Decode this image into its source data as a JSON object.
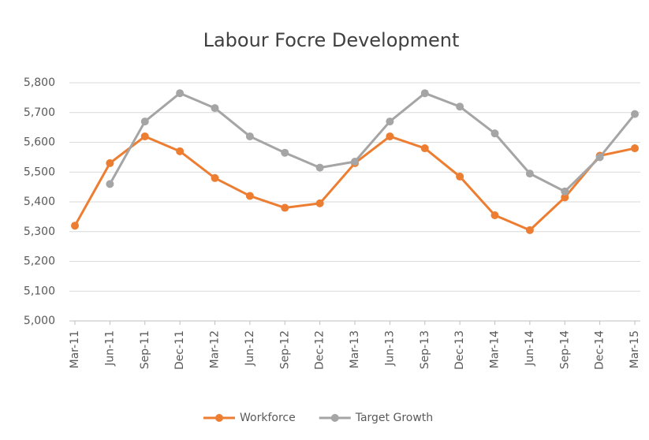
{
  "chart_data": {
    "type": "line",
    "title": "Labour Focre Development",
    "categories": [
      "Mar-11",
      "Jun-11",
      "Sep-11",
      "Dec-11",
      "Mar-12",
      "Jun-12",
      "Sep-12",
      "Dec-12",
      "Mar-13",
      "Jun-13",
      "Sep-13",
      "Dec-13",
      "Mar-14",
      "Jun-14",
      "Sep-14",
      "Dec-14",
      "Mar-15"
    ],
    "series": [
      {
        "name": "Workforce",
        "color": "#ed7d31",
        "values": [
          5320,
          5530,
          5620,
          5570,
          5480,
          5420,
          5380,
          5395,
          5530,
          5620,
          5580,
          5485,
          5355,
          5305,
          5415,
          5555,
          5580
        ]
      },
      {
        "name": "Target Growth",
        "color": "#a5a5a5",
        "values": [
          null,
          5460,
          5670,
          5765,
          5715,
          5620,
          5565,
          5515,
          5535,
          5670,
          5765,
          5720,
          5630,
          5495,
          5435,
          5550,
          5695
        ]
      }
    ],
    "ylim": [
      5000,
      5800
    ],
    "yticks": [
      {
        "value": 5000,
        "label": "5,000"
      },
      {
        "value": 5100,
        "label": "5,100"
      },
      {
        "value": 5200,
        "label": "5,200"
      },
      {
        "value": 5300,
        "label": "5,300"
      },
      {
        "value": 5400,
        "label": "5,400"
      },
      {
        "value": 5500,
        "label": "5,500"
      },
      {
        "value": 5600,
        "label": "5,600"
      },
      {
        "value": 5700,
        "label": "5,700"
      },
      {
        "value": 5800,
        "label": "5,800"
      }
    ],
    "grid": true,
    "legend": "bottom"
  }
}
